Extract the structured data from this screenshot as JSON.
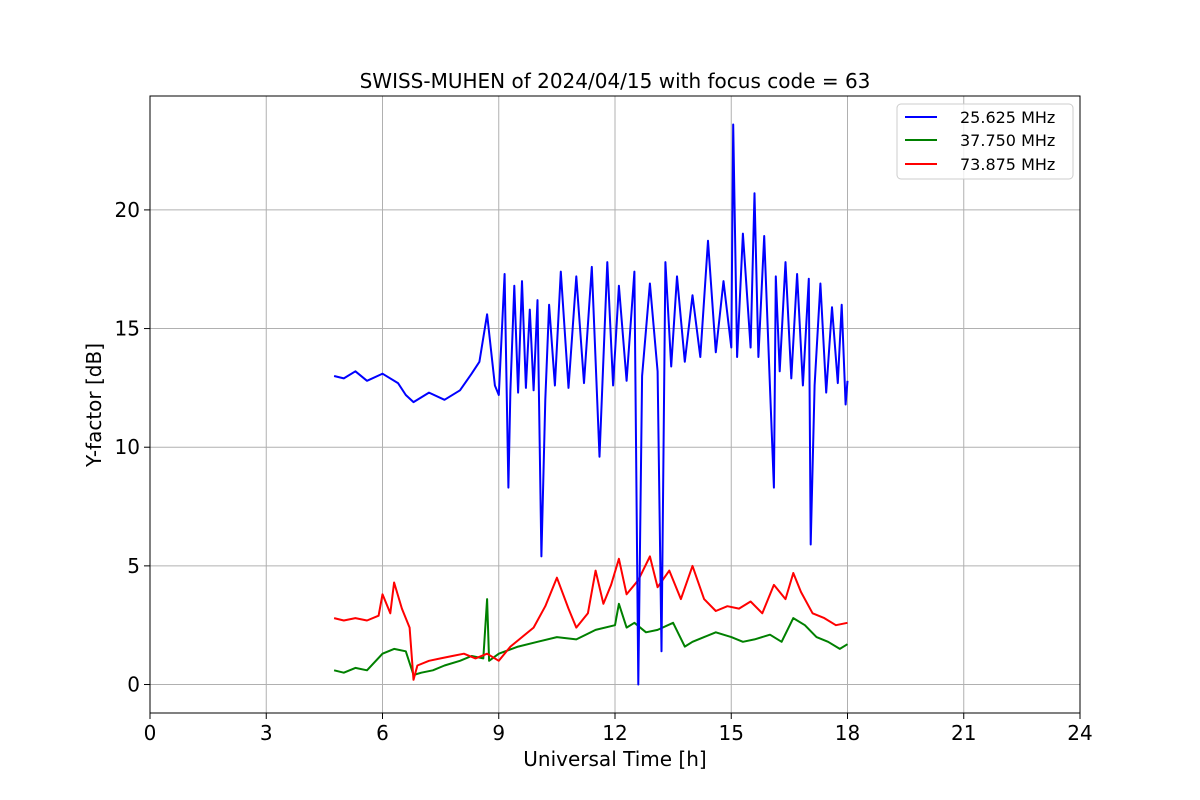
{
  "chart_data": {
    "type": "line",
    "title": "SWISS-MUHEN of 2024/04/15 with focus code = 63",
    "xlabel": "Universal Time [h]",
    "ylabel": "Y-factor [dB]",
    "xlim": [
      0,
      24
    ],
    "ylim": [
      -1.2,
      24.8
    ],
    "x_ticks": [
      0,
      3,
      6,
      9,
      12,
      15,
      18,
      21,
      24
    ],
    "y_ticks": [
      0,
      5,
      10,
      15,
      20
    ],
    "grid": true,
    "legend_position": "top-right",
    "series": [
      {
        "name": "25.625 MHz",
        "color": "#0000ff",
        "x": [
          4.75,
          5.0,
          5.3,
          5.6,
          6.0,
          6.4,
          6.6,
          6.8,
          7.2,
          7.6,
          8.0,
          8.3,
          8.5,
          8.7,
          8.9,
          9.0,
          9.15,
          9.25,
          9.3,
          9.4,
          9.5,
          9.6,
          9.7,
          9.8,
          9.9,
          10.0,
          10.1,
          10.2,
          10.3,
          10.45,
          10.6,
          10.8,
          11.0,
          11.2,
          11.4,
          11.6,
          11.8,
          11.95,
          12.1,
          12.3,
          12.5,
          12.6,
          12.7,
          12.9,
          13.1,
          13.2,
          13.3,
          13.45,
          13.6,
          13.8,
          14.0,
          14.2,
          14.4,
          14.6,
          14.8,
          15.0,
          15.05,
          15.15,
          15.3,
          15.5,
          15.6,
          15.7,
          15.85,
          16.0,
          16.1,
          16.15,
          16.25,
          16.4,
          16.55,
          16.7,
          16.85,
          17.0,
          17.05,
          17.15,
          17.3,
          17.45,
          17.6,
          17.75,
          17.85,
          17.95,
          18.0
        ],
        "y": [
          13.0,
          12.9,
          13.2,
          12.8,
          13.1,
          12.7,
          12.2,
          11.9,
          12.3,
          12.0,
          12.4,
          13.1,
          13.6,
          15.6,
          12.6,
          12.2,
          17.3,
          8.3,
          12.4,
          16.8,
          12.3,
          17.0,
          12.5,
          15.8,
          12.4,
          16.2,
          5.4,
          12.0,
          16.0,
          12.6,
          17.4,
          12.5,
          17.2,
          12.7,
          17.6,
          9.6,
          17.8,
          12.6,
          16.8,
          12.8,
          17.4,
          0.0,
          13.0,
          16.9,
          13.2,
          1.4,
          17.8,
          13.4,
          17.2,
          13.6,
          16.4,
          13.8,
          18.7,
          14.0,
          17.0,
          14.2,
          23.6,
          13.8,
          19.0,
          14.2,
          20.7,
          13.8,
          18.9,
          12.5,
          8.3,
          17.2,
          13.2,
          17.8,
          12.9,
          17.3,
          12.6,
          17.1,
          5.9,
          12.6,
          16.9,
          12.3,
          15.9,
          12.7,
          16.0,
          11.8,
          12.8
        ]
      },
      {
        "name": "37.750 MHz",
        "color": "#008000",
        "x": [
          4.75,
          5.0,
          5.3,
          5.6,
          6.0,
          6.3,
          6.6,
          6.8,
          7.0,
          7.3,
          7.6,
          8.0,
          8.3,
          8.6,
          8.7,
          8.75,
          9.0,
          9.5,
          10.0,
          10.5,
          11.0,
          11.5,
          12.0,
          12.1,
          12.3,
          12.5,
          12.8,
          13.1,
          13.5,
          13.8,
          14.0,
          14.3,
          14.6,
          15.0,
          15.3,
          15.6,
          16.0,
          16.3,
          16.6,
          16.9,
          17.2,
          17.5,
          17.8,
          18.0
        ],
        "y": [
          0.6,
          0.5,
          0.7,
          0.6,
          1.3,
          1.5,
          1.4,
          0.4,
          0.5,
          0.6,
          0.8,
          1.0,
          1.2,
          1.1,
          3.6,
          1.0,
          1.3,
          1.6,
          1.8,
          2.0,
          1.9,
          2.3,
          2.5,
          3.4,
          2.4,
          2.6,
          2.2,
          2.3,
          2.6,
          1.6,
          1.8,
          2.0,
          2.2,
          2.0,
          1.8,
          1.9,
          2.1,
          1.8,
          2.8,
          2.5,
          2.0,
          1.8,
          1.5,
          1.7
        ]
      },
      {
        "name": "73.875 MHz",
        "color": "#ff0000",
        "x": [
          4.75,
          5.0,
          5.3,
          5.6,
          5.9,
          6.0,
          6.2,
          6.3,
          6.5,
          6.7,
          6.8,
          6.9,
          7.2,
          7.5,
          7.8,
          8.1,
          8.4,
          8.7,
          9.0,
          9.3,
          9.6,
          9.9,
          10.2,
          10.5,
          10.8,
          11.0,
          11.3,
          11.5,
          11.7,
          11.9,
          12.1,
          12.3,
          12.6,
          12.9,
          13.1,
          13.4,
          13.7,
          14.0,
          14.3,
          14.6,
          14.9,
          15.2,
          15.5,
          15.8,
          16.1,
          16.4,
          16.6,
          16.8,
          17.1,
          17.4,
          17.7,
          18.0
        ],
        "y": [
          2.8,
          2.7,
          2.8,
          2.7,
          2.9,
          3.8,
          3.0,
          4.3,
          3.2,
          2.4,
          0.2,
          0.8,
          1.0,
          1.1,
          1.2,
          1.3,
          1.1,
          1.3,
          1.0,
          1.6,
          2.0,
          2.4,
          3.3,
          4.5,
          3.2,
          2.4,
          3.0,
          4.8,
          3.4,
          4.2,
          5.3,
          3.8,
          4.4,
          5.4,
          4.1,
          4.8,
          3.6,
          5.0,
          3.6,
          3.1,
          3.3,
          3.2,
          3.5,
          3.0,
          4.2,
          3.6,
          4.7,
          3.9,
          3.0,
          2.8,
          2.5,
          2.6
        ]
      }
    ]
  }
}
